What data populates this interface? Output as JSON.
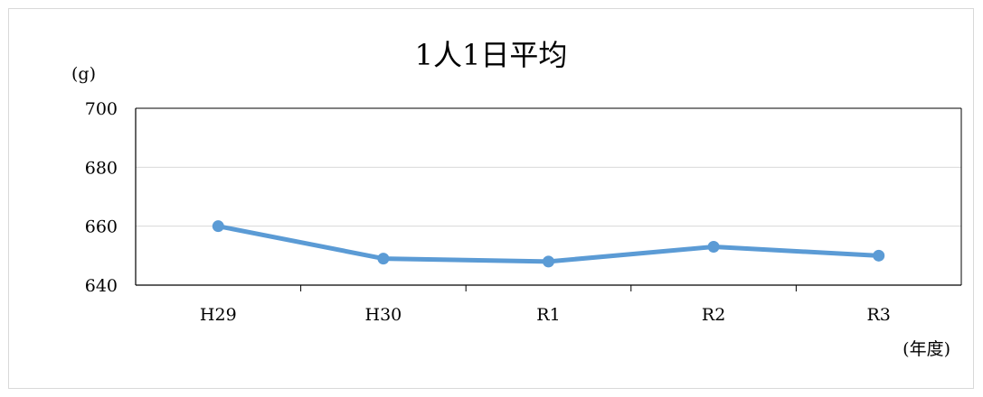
{
  "chart_data": {
    "type": "line",
    "title": "1人1日平均",
    "ylabel": "(g)",
    "xlabel": "(年度)",
    "categories": [
      "H29",
      "H30",
      "R1",
      "R2",
      "R3"
    ],
    "series": [
      {
        "values": [
          660,
          649,
          648,
          653,
          650
        ]
      }
    ],
    "ylim": [
      640,
      700
    ],
    "yticks": [
      700,
      680,
      660,
      640
    ],
    "grid": true,
    "legend": "none",
    "line_color": "#5b9bd5",
    "grid_color": "#d9d9d9",
    "axis_color": "#000000"
  }
}
